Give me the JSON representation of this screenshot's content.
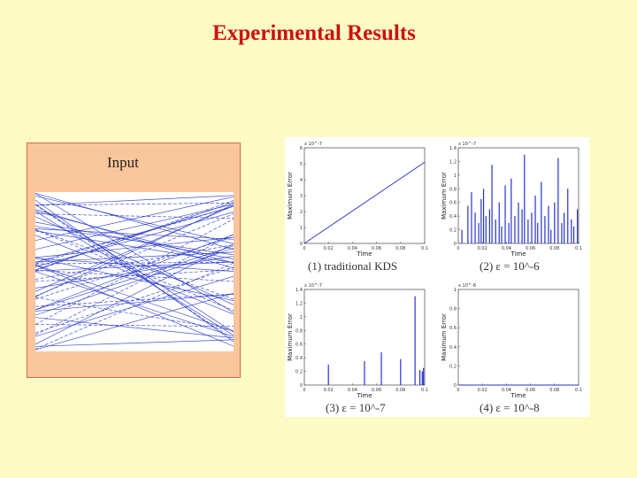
{
  "slide": {
    "title": "Experimental Results",
    "input_label": "Input"
  },
  "colors": {
    "background": "#fdfbc4",
    "title": "#cc1111",
    "line": "#2233cc",
    "panel": "#f9c59a"
  },
  "chart_data": [
    {
      "type": "line",
      "caption": "(1) traditional KDS",
      "xlabel": "Time",
      "ylabel": "Maximum Error",
      "exponent": "x 10^-7",
      "xlim": [
        0,
        0.1
      ],
      "ylim": [
        0,
        6
      ],
      "xticks": [
        "0",
        "0.02",
        "0.04",
        "0.06",
        "0.08",
        "0.1"
      ],
      "yticks": [
        "0",
        "1",
        "2",
        "3",
        "4",
        "5",
        "6"
      ],
      "series": [
        {
          "x": [
            0,
            0.1
          ],
          "y": [
            0,
            5.1
          ]
        }
      ]
    },
    {
      "type": "bar",
      "caption": "(2) ε = 10^-6",
      "xlabel": "Time",
      "ylabel": "Maximum Error",
      "exponent": "x 10^-7",
      "xlim": [
        0,
        0.1
      ],
      "ylim": [
        0,
        1.4
      ],
      "xticks": [
        "0",
        "0.02",
        "0.04",
        "0.06",
        "0.08",
        "0.1"
      ],
      "yticks": [
        "0",
        "0.2",
        "0.4",
        "0.6",
        "0.8",
        "1",
        "1.2",
        "1.4"
      ],
      "x": [
        0.003,
        0.008,
        0.011,
        0.014,
        0.017,
        0.019,
        0.021,
        0.023,
        0.026,
        0.028,
        0.031,
        0.034,
        0.036,
        0.039,
        0.042,
        0.044,
        0.047,
        0.05,
        0.053,
        0.055,
        0.058,
        0.061,
        0.064,
        0.066,
        0.069,
        0.072,
        0.075,
        0.077,
        0.08,
        0.083,
        0.086,
        0.088,
        0.091,
        0.094,
        0.096,
        0.099
      ],
      "values": [
        0.2,
        0.55,
        0.75,
        0.45,
        0.3,
        0.65,
        0.8,
        0.4,
        0.5,
        1.15,
        0.35,
        0.6,
        0.25,
        0.85,
        0.3,
        0.95,
        0.4,
        0.6,
        0.5,
        1.3,
        0.35,
        0.45,
        0.7,
        0.3,
        0.9,
        0.4,
        0.55,
        0.2,
        0.6,
        1.25,
        0.3,
        0.45,
        0.8,
        0.35,
        0.25,
        0.5
      ]
    },
    {
      "type": "bar",
      "caption": "(3) ε = 10^-7",
      "xlabel": "Time",
      "ylabel": "Maximum Error",
      "exponent": "x 10^-7",
      "xlim": [
        0,
        0.1
      ],
      "ylim": [
        0,
        1.4
      ],
      "xticks": [
        "0",
        "0.02",
        "0.04",
        "0.06",
        "0.08",
        "0.1"
      ],
      "yticks": [
        "0",
        "0.2",
        "0.4",
        "0.6",
        "0.8",
        "1",
        "1.2",
        "1.4"
      ],
      "x": [
        0.02,
        0.05,
        0.064,
        0.08,
        0.092,
        0.096,
        0.098,
        0.099
      ],
      "values": [
        0.3,
        0.35,
        0.48,
        0.38,
        1.3,
        0.22,
        0.2,
        0.25
      ]
    },
    {
      "type": "line",
      "caption": "(4) ε = 10^-8",
      "xlabel": "Time",
      "ylabel": "Maximum Error",
      "exponent": "x 10^-8",
      "xlim": [
        0,
        0.1
      ],
      "ylim": [
        0,
        1
      ],
      "xticks": [
        "0",
        "0.02",
        "0.04",
        "0.06",
        "0.08",
        "0.1"
      ],
      "yticks": [
        "0",
        "0.2",
        "0.4",
        "0.6",
        "0.8",
        "1"
      ],
      "series": [
        {
          "x": [
            0,
            0.1
          ],
          "y": [
            0,
            0
          ]
        }
      ]
    }
  ]
}
